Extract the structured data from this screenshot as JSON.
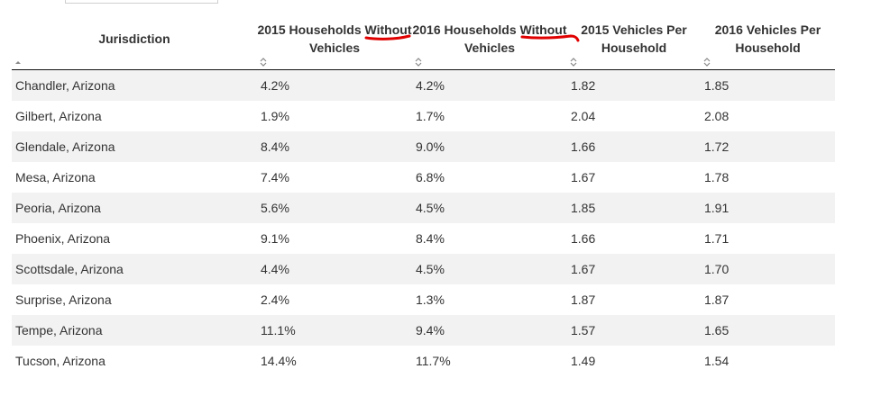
{
  "table": {
    "columns": [
      {
        "label_line1": "Jurisdiction",
        "label_line2": ""
      },
      {
        "label_line1": "2015 Households Without",
        "label_line2": "Vehicles"
      },
      {
        "label_line1": "2016 Households Without",
        "label_line2": "Vehicles"
      },
      {
        "label_line1": "2015 Vehicles Per",
        "label_line2": "Household"
      },
      {
        "label_line1": "2016 Vehicles Per",
        "label_line2": "Household"
      }
    ],
    "sort": {
      "column": "Jurisdiction",
      "direction": "ascending"
    },
    "rows": [
      [
        "Chandler, Arizona",
        "4.2%",
        "4.2%",
        "1.82",
        "1.85"
      ],
      [
        "Gilbert, Arizona",
        "1.9%",
        "1.7%",
        "2.04",
        "2.08"
      ],
      [
        "Glendale, Arizona",
        "8.4%",
        "9.0%",
        "1.66",
        "1.72"
      ],
      [
        "Mesa, Arizona",
        "7.4%",
        "6.8%",
        "1.67",
        "1.78"
      ],
      [
        "Peoria, Arizona",
        "5.6%",
        "4.5%",
        "1.85",
        "1.91"
      ],
      [
        "Phoenix, Arizona",
        "9.1%",
        "8.4%",
        "1.66",
        "1.71"
      ],
      [
        "Scottsdale, Arizona",
        "4.4%",
        "4.5%",
        "1.67",
        "1.70"
      ],
      [
        "Surprise, Arizona",
        "2.4%",
        "1.3%",
        "1.87",
        "1.87"
      ],
      [
        "Tempe, Arizona",
        "11.1%",
        "9.4%",
        "1.57",
        "1.65"
      ],
      [
        "Tucson, Arizona",
        "14.4%",
        "11.7%",
        "1.49",
        "1.54"
      ]
    ]
  },
  "colors": {
    "stripe": "#f2f2f2",
    "header_rule": "#111111",
    "annotation": "#e00000",
    "sort_icon": "#888888"
  },
  "icons": {
    "sort_ascending": "sort-ascending-icon",
    "sort_both": "sort-both-icon"
  }
}
